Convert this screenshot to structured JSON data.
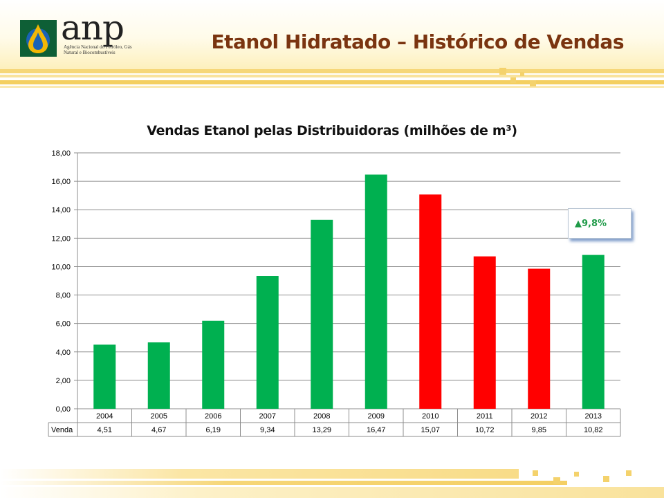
{
  "header": {
    "logo_text": "anp",
    "logo_subtitle": "Agência Nacional do Petróleo, Gás Natural e Biocombustíveis",
    "title": "Etanol Hidratado – Histórico de Vendas"
  },
  "colors": {
    "increase": "#00b050",
    "decrease": "#ff0000",
    "title_brown": "#7a3410",
    "accent_gold": "#f4cf60"
  },
  "chart_data": {
    "type": "bar",
    "title": "Vendas Etanol pelas Distribuidoras (milhões de m³)",
    "categories": [
      "2004",
      "2005",
      "2006",
      "2007",
      "2008",
      "2009",
      "2010",
      "2011",
      "2012",
      "2013"
    ],
    "series": [
      {
        "name": "Venda",
        "values": [
          4.51,
          4.67,
          6.19,
          9.34,
          13.29,
          16.47,
          15.07,
          10.72,
          9.85,
          10.82
        ],
        "value_labels": [
          "4,51",
          "4,67",
          "6,19",
          "9,34",
          "13,29",
          "16,47",
          "15,07",
          "10,72",
          "9,85",
          "10,82"
        ],
        "bar_colors": [
          "#00b050",
          "#00b050",
          "#00b050",
          "#00b050",
          "#00b050",
          "#00b050",
          "#ff0000",
          "#ff0000",
          "#ff0000",
          "#00b050"
        ]
      }
    ],
    "ylim": [
      0,
      18
    ],
    "yticks": [
      0,
      2,
      4,
      6,
      8,
      10,
      12,
      14,
      16,
      18
    ],
    "ytick_labels": [
      "0,00",
      "2,00",
      "4,00",
      "6,00",
      "8,00",
      "10,00",
      "12,00",
      "14,00",
      "16,00",
      "18,00"
    ],
    "grid": true,
    "data_table": true,
    "table_row_label": "Venda",
    "annotation": {
      "text": "▲9,8%",
      "color": "#1f9a48"
    }
  }
}
